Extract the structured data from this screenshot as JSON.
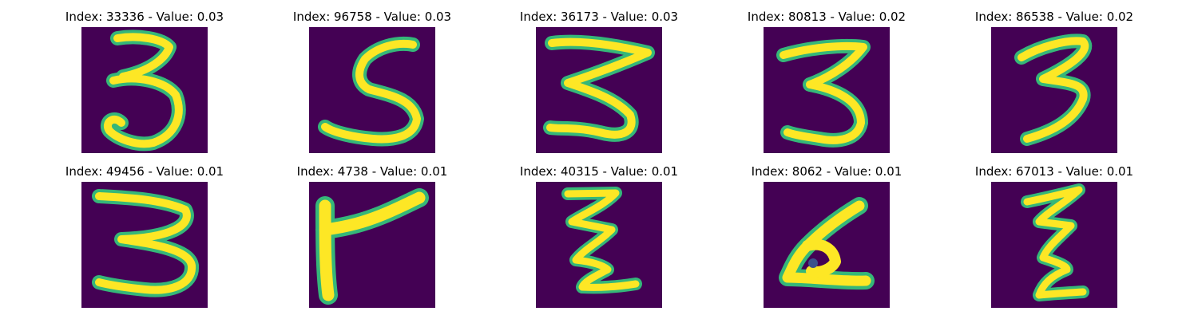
{
  "grid": {
    "rows": 2,
    "cols": 5,
    "colors": {
      "background": "#440154",
      "stroke_core": "#fde725",
      "stroke_edge": "#35b779"
    },
    "panels": [
      {
        "title": "Index: 33336 - Value: 0.03",
        "digit_shape": "three"
      },
      {
        "title": "Index: 96758 - Value: 0.03",
        "digit_shape": "five"
      },
      {
        "title": "Index: 36173 - Value: 0.03",
        "digit_shape": "three"
      },
      {
        "title": "Index: 80813 - Value: 0.02",
        "digit_shape": "three"
      },
      {
        "title": "Index: 86538 - Value: 0.02",
        "digit_shape": "three"
      },
      {
        "title": "Index: 49456 - Value: 0.01",
        "digit_shape": "three"
      },
      {
        "title": "Index: 4738 - Value: 0.01",
        "digit_shape": "seven-like"
      },
      {
        "title": "Index: 40315 - Value: 0.01",
        "digit_shape": "zigzag"
      },
      {
        "title": "Index: 8062 - Value: 0.01",
        "digit_shape": "blob"
      },
      {
        "title": "Index: 67013 - Value: 0.01",
        "digit_shape": "zigzag"
      }
    ]
  }
}
